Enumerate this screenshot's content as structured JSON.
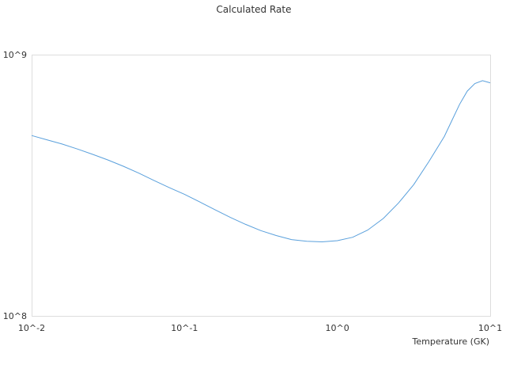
{
  "chart_data": {
    "type": "line",
    "title": "Calculated Rate",
    "xlabel": "Temperature (GK)",
    "ylabel": "",
    "x_scale": "log",
    "y_scale": "log",
    "xlim": [
      0.01,
      10
    ],
    "ylim": [
      100000000,
      1000000000
    ],
    "x_tick_labels": [
      "10^-2",
      "10^-1",
      "10^0",
      "10^1"
    ],
    "y_tick_labels": [
      "10^9",
      "10^8"
    ],
    "grid": false,
    "legend": "none",
    "colors": {
      "line": "#5aa0dc",
      "frame": "#dddddd"
    },
    "series": [
      {
        "x": [
          0.01,
          0.0126,
          0.0158,
          0.02,
          0.0251,
          0.0316,
          0.0398,
          0.0501,
          0.0631,
          0.0794,
          0.1,
          0.126,
          0.158,
          0.2,
          0.251,
          0.316,
          0.398,
          0.501,
          0.631,
          0.794,
          1.0,
          1.26,
          1.58,
          2.0,
          2.51,
          3.16,
          3.98,
          5.01,
          5.62,
          6.31,
          7.08,
          7.94,
          8.91,
          10.0
        ],
        "y": [
          490000000,
          472000000,
          455000000,
          435000000,
          415000000,
          395000000,
          374000000,
          352000000,
          330000000,
          310000000,
          292000000,
          273000000,
          255000000,
          238000000,
          224000000,
          212000000,
          203000000,
          196000000,
          193000000,
          192000000,
          194000000,
          200000000,
          213000000,
          236000000,
          270000000,
          318000000,
          390000000,
          486000000,
          560000000,
          645000000,
          725000000,
          775000000,
          795000000,
          780000000
        ]
      }
    ]
  }
}
